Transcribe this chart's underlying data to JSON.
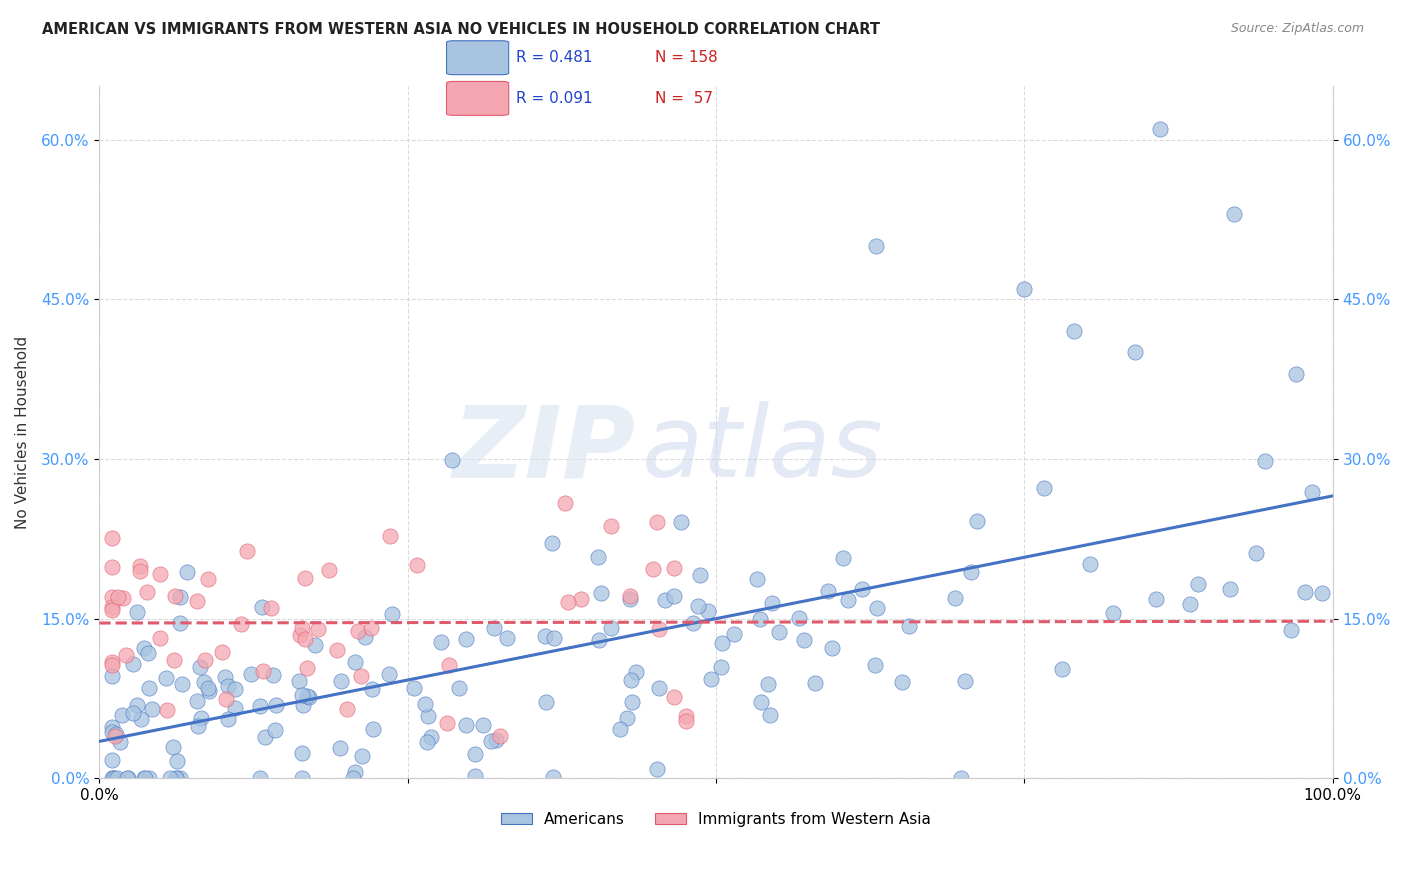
{
  "title": "AMERICAN VS IMMIGRANTS FROM WESTERN ASIA NO VEHICLES IN HOUSEHOLD CORRELATION CHART",
  "source": "Source: ZipAtlas.com",
  "ylabel": "No Vehicles in Household",
  "xlim": [
    0.0,
    1.0
  ],
  "ylim": [
    0.0,
    0.65
  ],
  "yticks": [
    0.0,
    0.15,
    0.3,
    0.45,
    0.6
  ],
  "xticks": [
    0.0,
    0.25,
    0.5,
    0.75,
    1.0
  ],
  "xtick_labels": [
    "0.0%",
    "",
    "",
    "",
    "100.0%"
  ],
  "americans_R": 0.481,
  "americans_N": 158,
  "immigrants_R": 0.091,
  "immigrants_N": 57,
  "americans_color": "#a8c4e0",
  "immigrants_color": "#f4a7b0",
  "americans_line_color": "#4472c4",
  "immigrants_line_color": "#e05a6e",
  "watermark_zip": "ZIP",
  "watermark_atlas": "atlas",
  "background_color": "#ffffff",
  "grid_color": "#cccccc",
  "tick_color": "#4499ff",
  "title_color": "#222222",
  "source_color": "#888888"
}
